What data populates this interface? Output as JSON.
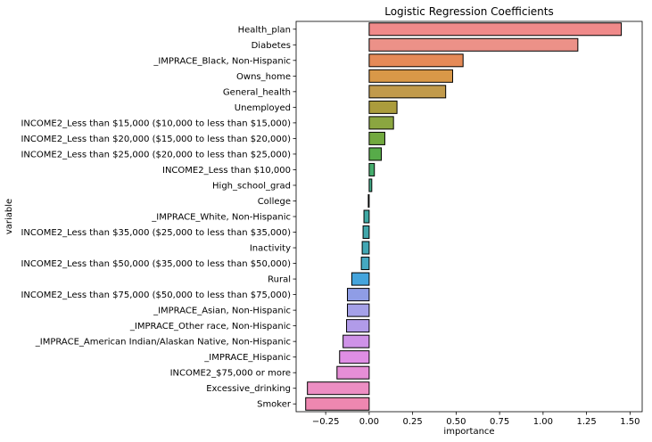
{
  "chart_data": {
    "type": "bar",
    "orientation": "horizontal",
    "title": "Logistic Regression Coefficients",
    "xlabel": "importance",
    "ylabel": "variable",
    "xlim": [
      -0.42,
      1.57
    ],
    "xticks": [
      -0.25,
      0.0,
      0.25,
      0.5,
      0.75,
      1.0,
      1.25,
      1.5
    ],
    "xtick_labels": [
      "−0.25",
      "0.00",
      "0.25",
      "0.50",
      "0.75",
      "1.00",
      "1.25",
      "1.50"
    ],
    "grid": false,
    "categories": [
      "Health_plan",
      "Diabetes",
      "_IMPRACE_Black, Non-Hispanic",
      "Owns_home",
      "General_health",
      "Unemployed",
      "INCOME2_Less than $15,000 ($10,000 to less than $15,000)",
      "INCOME2_Less than $20,000 ($15,000 to less than $20,000)",
      "INCOME2_Less than $25,000 ($20,000 to less than $25,000)",
      "INCOME2_Less than $10,000",
      "High_school_grad",
      "College",
      "_IMPRACE_White, Non-Hispanic",
      "INCOME2_Less than $35,000 ($25,000 to less than $35,000)",
      "Inactivity",
      "INCOME2_Less than $50,000 ($35,000 to less than $50,000)",
      "Rural",
      "INCOME2_Less than $75,000 ($50,000 to less than $75,000)",
      "_IMPRACE_Asian, Non-Hispanic",
      "_IMPRACE_Other race, Non-Hispanic",
      "_IMPRACE_American Indian/Alaskan Native, Non-Hispanic",
      "_IMPRACE_Hispanic",
      "INCOME2_$75,000 or more",
      "Excessive_drinking",
      "Smoker"
    ],
    "values": [
      1.45,
      1.2,
      0.54,
      0.48,
      0.44,
      0.16,
      0.14,
      0.09,
      0.07,
      0.03,
      0.015,
      -0.005,
      -0.03,
      -0.035,
      -0.04,
      -0.045,
      -0.1,
      -0.125,
      -0.125,
      -0.13,
      -0.15,
      -0.17,
      -0.185,
      -0.355,
      -0.365
    ],
    "colors": [
      "#f08a8a",
      "#ec9188",
      "#e58a57",
      "#d99848",
      "#c19a4b",
      "#ab9c3c",
      "#8ba640",
      "#72a93f",
      "#57ab49",
      "#45ac6c",
      "#43ae8b",
      "#47ad9b",
      "#3fa9a4",
      "#42a7ab",
      "#42a7b4",
      "#45a9c2",
      "#44a4dc",
      "#8f9de6",
      "#a5a1e8",
      "#b19be9",
      "#cf92e8",
      "#df8ee4",
      "#e68ed6",
      "#ed8ec3",
      "#ee87b0"
    ]
  }
}
